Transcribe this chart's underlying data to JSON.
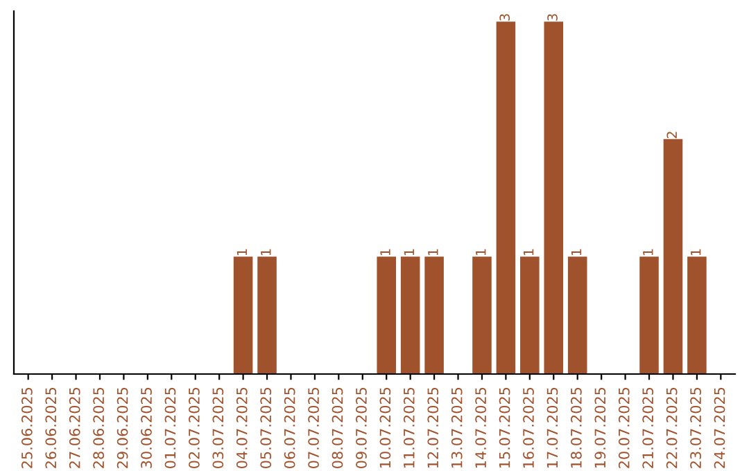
{
  "chart_data": {
    "type": "bar",
    "categories": [
      "25.06.2025",
      "26.06.2025",
      "27.06.2025",
      "28.06.2025",
      "29.06.2025",
      "30.06.2025",
      "01.07.2025",
      "02.07.2025",
      "03.07.2025",
      "04.07.2025",
      "05.07.2025",
      "06.07.2025",
      "07.07.2025",
      "08.07.2025",
      "09.07.2025",
      "10.07.2025",
      "11.07.2025",
      "12.07.2025",
      "13.07.2025",
      "14.07.2025",
      "15.07.2025",
      "16.07.2025",
      "17.07.2025",
      "18.07.2025",
      "19.07.2025",
      "20.07.2025",
      "21.07.2025",
      "22.07.2025",
      "23.07.2025",
      "24.07.2025"
    ],
    "values": [
      0,
      0,
      0,
      0,
      0,
      0,
      0,
      0,
      0,
      1,
      1,
      0,
      0,
      0,
      0,
      1,
      1,
      1,
      0,
      1,
      3,
      1,
      3,
      1,
      0,
      0,
      1,
      2,
      1,
      0
    ],
    "value_labels": [
      null,
      null,
      null,
      null,
      null,
      null,
      null,
      null,
      null,
      "1",
      "1",
      null,
      null,
      null,
      null,
      "1",
      "1",
      "1",
      null,
      "1",
      "3",
      "1",
      "3",
      "1",
      null,
      null,
      "1",
      "2",
      "1",
      null
    ],
    "color": "#a0522d",
    "grid": false,
    "legend": false,
    "tick_labels": "x"
  }
}
